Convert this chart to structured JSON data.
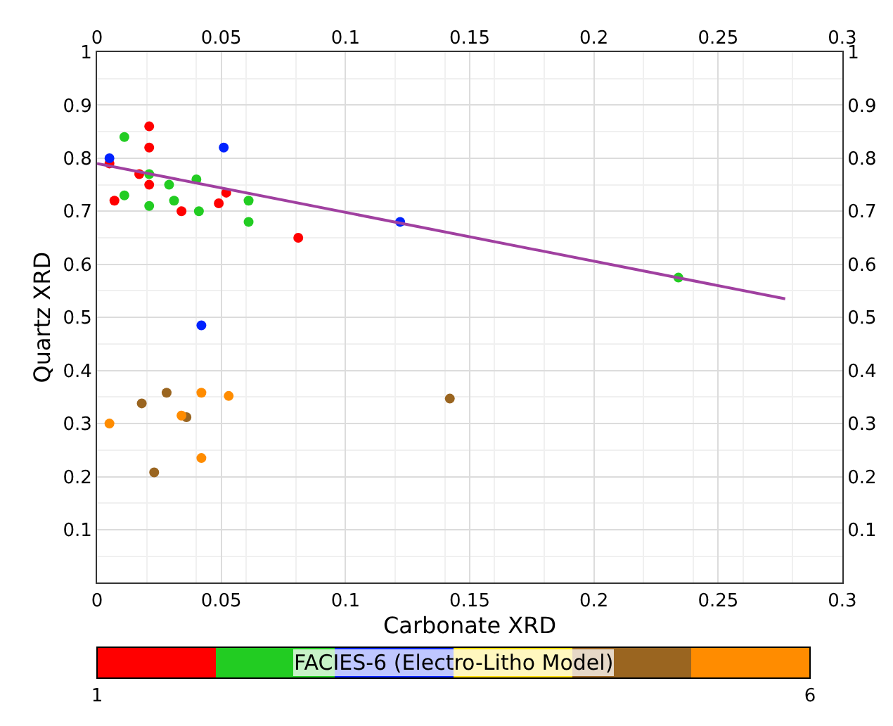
{
  "chart_data": {
    "type": "scatter",
    "xlabel": "Carbonate XRD",
    "ylabel": "Quartz XRD",
    "clabel": "FACIES-6 (Electro-Litho Model)",
    "xlim": [
      0,
      0.3
    ],
    "xticks": [
      0,
      0.05,
      0.1,
      0.15,
      0.2,
      0.25,
      0.3
    ],
    "x2lim": [
      0,
      0.3
    ],
    "x2ticks": [
      0,
      0.05,
      0.1,
      0.15,
      0.2,
      0.25,
      0.3
    ],
    "ylim": [
      0,
      1
    ],
    "yticks": [
      0.1,
      0.2,
      0.3,
      0.4,
      0.5,
      0.6,
      0.7,
      0.8,
      0.9,
      1
    ],
    "y2lim": [
      0,
      1
    ],
    "y2ticks": [
      0.1,
      0.2,
      0.3,
      0.4,
      0.5,
      0.6,
      0.7,
      0.8,
      0.9,
      1
    ],
    "clim": [
      1,
      6
    ],
    "cticks": [
      1,
      6
    ],
    "grid": true,
    "marker": "circle",
    "series": [
      {
        "color": "#ff0000",
        "x": [
          0.005,
          0.017,
          0.021,
          0.007,
          0.034,
          0.049,
          0.052,
          0.081,
          0.021,
          0.021
        ],
        "values": [
          0.79,
          0.77,
          0.75,
          0.72,
          0.7,
          0.715,
          0.735,
          0.65,
          0.86,
          0.82
        ]
      },
      {
        "color": "#22cc22",
        "x": [
          0.011,
          0.021,
          0.029,
          0.04,
          0.011,
          0.031,
          0.021,
          0.041,
          0.061,
          0.061,
          0.234
        ],
        "values": [
          0.84,
          0.77,
          0.75,
          0.76,
          0.73,
          0.72,
          0.71,
          0.7,
          0.72,
          0.68,
          0.575
        ]
      },
      {
        "color": "#0022ff",
        "x": [
          0.005,
          0.051,
          0.122,
          0.042
        ],
        "values": [
          0.8,
          0.82,
          0.68,
          0.485
        ]
      },
      {
        "color": "#ffdd00"
      },
      {
        "color": "#9a6520",
        "x": [
          0.028,
          0.018,
          0.036,
          0.023,
          0.142
        ],
        "values": [
          0.358,
          0.338,
          0.312,
          0.208,
          0.347
        ]
      },
      {
        "color": "#ff8c00",
        "x": [
          0.042,
          0.053,
          0.034,
          0.005,
          0.042
        ],
        "values": [
          0.358,
          0.352,
          0.315,
          0.3,
          0.235
        ]
      },
      {
        "type": "line",
        "color": "#a040a0",
        "marker": "none",
        "x": [
          0,
          0.277
        ],
        "values": [
          0.79,
          0.535
        ]
      }
    ]
  }
}
